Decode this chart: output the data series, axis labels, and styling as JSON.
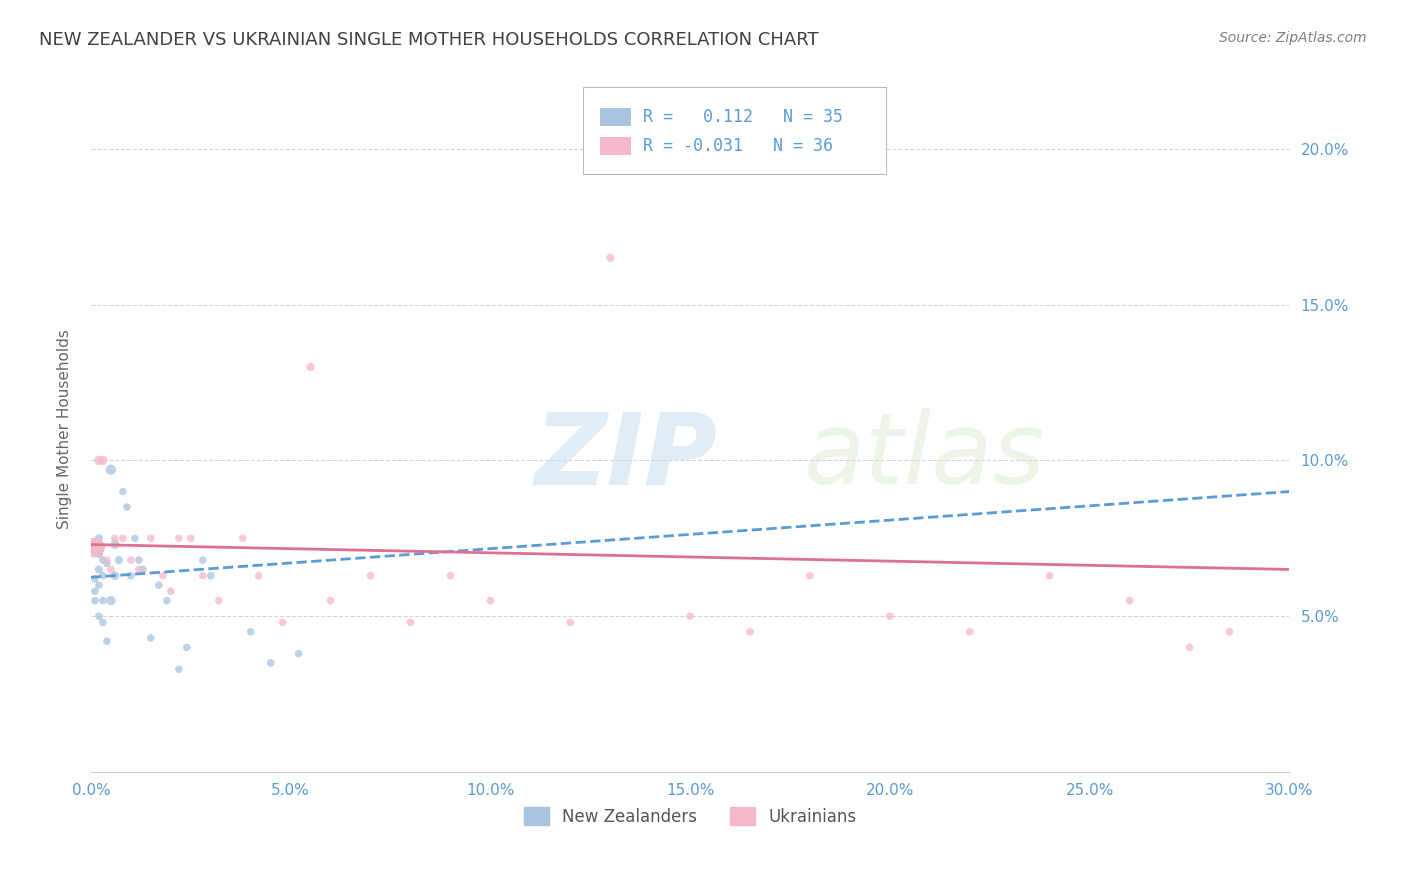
{
  "title": "NEW ZEALANDER VS UKRAINIAN SINGLE MOTHER HOUSEHOLDS CORRELATION CHART",
  "source": "Source: ZipAtlas.com",
  "ylabel": "Single Mother Households",
  "x_min": 0.0,
  "x_max": 0.3,
  "y_min": 0.0,
  "y_max": 0.22,
  "x_ticks": [
    0.0,
    0.05,
    0.1,
    0.15,
    0.2,
    0.25,
    0.3
  ],
  "x_tick_labels": [
    "0.0%",
    "5.0%",
    "10.0%",
    "15.0%",
    "20.0%",
    "25.0%",
    "30.0%"
  ],
  "y_ticks": [
    0.05,
    0.1,
    0.15,
    0.2
  ],
  "y_tick_labels": [
    "5.0%",
    "10.0%",
    "15.0%",
    "20.0%"
  ],
  "legend_nz_r": "0.112",
  "legend_nz_n": "35",
  "legend_ua_r": "-0.031",
  "legend_ua_n": "36",
  "color_nz": "#a8c4e0",
  "color_ua": "#f4b8c8",
  "color_nz_line": "#5b9bd5",
  "color_ua_line": "#e07090",
  "color_title": "#404040",
  "color_source": "#808080",
  "color_legend_text": "#5b9bd5",
  "color_axis": "#5b9bd5",
  "color_grid": "#d0d0d0",
  "watermark_zip": "ZIP",
  "watermark_atlas": "atlas",
  "nz_x": [
    0.001,
    0.001,
    0.001,
    0.002,
    0.002,
    0.002,
    0.002,
    0.002,
    0.003,
    0.003,
    0.003,
    0.003,
    0.004,
    0.004,
    0.005,
    0.005,
    0.006,
    0.006,
    0.007,
    0.008,
    0.009,
    0.01,
    0.011,
    0.012,
    0.013,
    0.015,
    0.017,
    0.019,
    0.022,
    0.024,
    0.028,
    0.03,
    0.04,
    0.045,
    0.052
  ],
  "nz_y": [
    0.062,
    0.058,
    0.055,
    0.075,
    0.07,
    0.065,
    0.06,
    0.05,
    0.068,
    0.063,
    0.055,
    0.048,
    0.067,
    0.042,
    0.097,
    0.055,
    0.073,
    0.063,
    0.068,
    0.09,
    0.085,
    0.063,
    0.075,
    0.068,
    0.065,
    0.043,
    0.06,
    0.055,
    0.033,
    0.04,
    0.068,
    0.063,
    0.045,
    0.035,
    0.038
  ],
  "nz_sizes": [
    30,
    30,
    30,
    35,
    35,
    35,
    30,
    30,
    30,
    30,
    30,
    30,
    30,
    30,
    55,
    45,
    45,
    40,
    35,
    30,
    30,
    30,
    30,
    30,
    30,
    30,
    30,
    30,
    30,
    30,
    30,
    30,
    30,
    30,
    30
  ],
  "nz_large_x": [
    0.001
  ],
  "nz_large_y": [
    0.072
  ],
  "nz_large_size": [
    200
  ],
  "ua_x": [
    0.001,
    0.002,
    0.003,
    0.004,
    0.005,
    0.006,
    0.008,
    0.01,
    0.012,
    0.015,
    0.018,
    0.02,
    0.022,
    0.025,
    0.028,
    0.032,
    0.038,
    0.042,
    0.048,
    0.055,
    0.06,
    0.07,
    0.08,
    0.09,
    0.1,
    0.12,
    0.13,
    0.15,
    0.165,
    0.18,
    0.2,
    0.22,
    0.24,
    0.26,
    0.275,
    0.285
  ],
  "ua_y": [
    0.072,
    0.1,
    0.1,
    0.068,
    0.065,
    0.075,
    0.075,
    0.068,
    0.065,
    0.075,
    0.063,
    0.058,
    0.075,
    0.075,
    0.063,
    0.055,
    0.075,
    0.063,
    0.048,
    0.13,
    0.055,
    0.063,
    0.048,
    0.063,
    0.055,
    0.048,
    0.165,
    0.05,
    0.045,
    0.063,
    0.05,
    0.045,
    0.063,
    0.055,
    0.04,
    0.045
  ],
  "ua_sizes": [
    200,
    45,
    45,
    30,
    30,
    30,
    30,
    30,
    30,
    30,
    30,
    30,
    30,
    30,
    30,
    30,
    30,
    30,
    30,
    35,
    30,
    30,
    30,
    30,
    30,
    30,
    35,
    30,
    30,
    30,
    30,
    30,
    30,
    30,
    30,
    30
  ],
  "nz_trend_x": [
    0.0,
    0.3
  ],
  "nz_trend_y": [
    0.0625,
    0.09
  ],
  "ua_trend_x": [
    0.0,
    0.3
  ],
  "ua_trend_y": [
    0.073,
    0.065
  ]
}
